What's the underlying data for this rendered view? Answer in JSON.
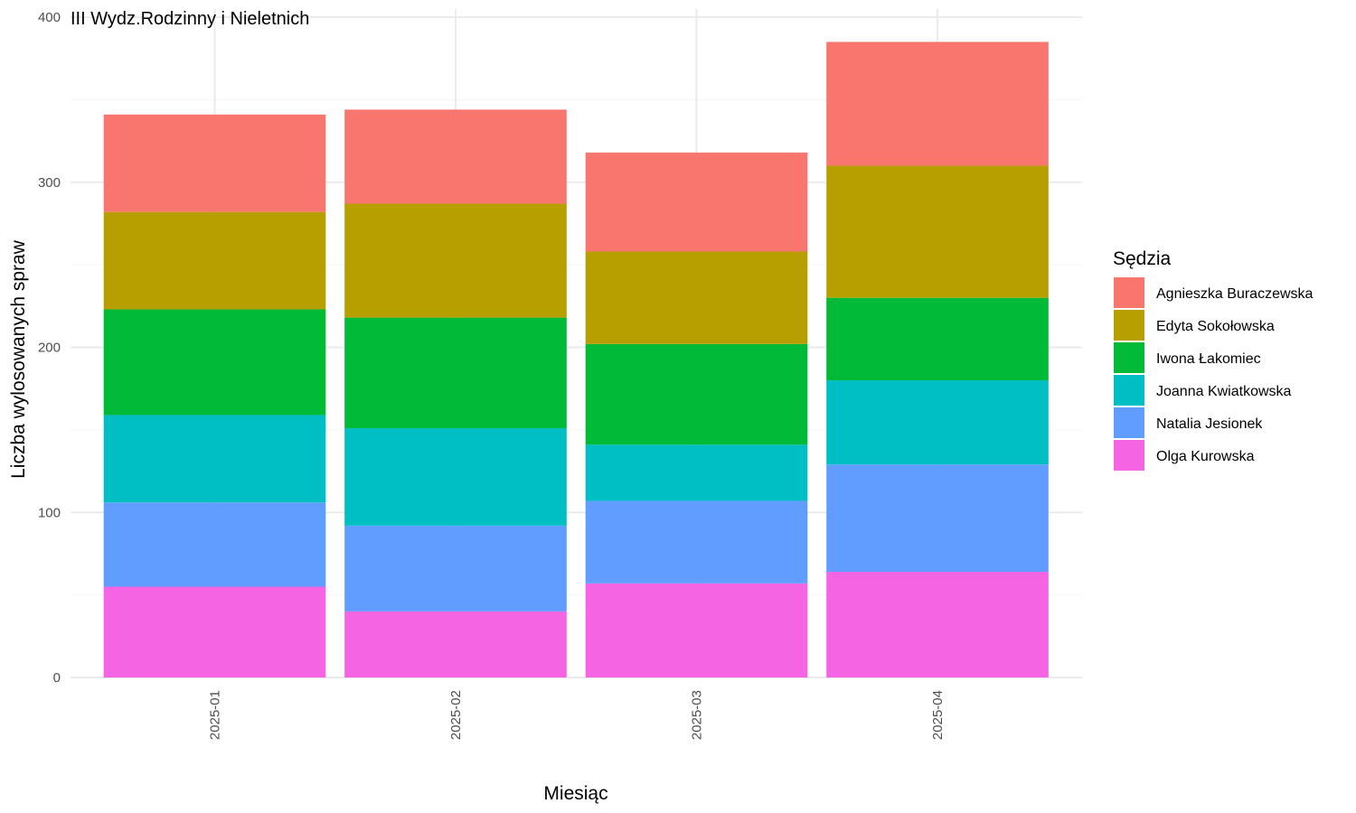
{
  "chart_data": {
    "type": "bar",
    "stacked": true,
    "title": "III Wydz.Rodzinny i Nieletnich",
    "xlabel": "Miesiąc",
    "ylabel": "Liczba wylosowanych spraw",
    "ylim": [
      0,
      400
    ],
    "yticks": [
      "0",
      "100",
      "200",
      "300",
      "400"
    ],
    "grid": true,
    "legend_title": "Sędzia",
    "legend_position": "right",
    "categories": [
      "2025-01",
      "2025-02",
      "2025-03",
      "2025-04"
    ],
    "series": [
      {
        "name": "Agnieszka Buraczewska",
        "color": "#F8766D",
        "values": [
          59,
          57,
          60,
          75
        ]
      },
      {
        "name": "Edyta Sokołowska",
        "color": "#B79F00",
        "values": [
          59,
          69,
          56,
          80
        ]
      },
      {
        "name": "Iwona Łakomiec",
        "color": "#00BA38",
        "values": [
          64,
          67,
          61,
          50
        ]
      },
      {
        "name": "Joanna Kwiatkowska",
        "color": "#00BFC4",
        "values": [
          53,
          59,
          34,
          51
        ]
      },
      {
        "name": "Natalia Jesionek",
        "color": "#619CFF",
        "values": [
          51,
          52,
          50,
          65
        ]
      },
      {
        "name": "Olga Kurowska",
        "color": "#F564E3",
        "values": [
          55,
          40,
          57,
          64
        ]
      }
    ]
  }
}
